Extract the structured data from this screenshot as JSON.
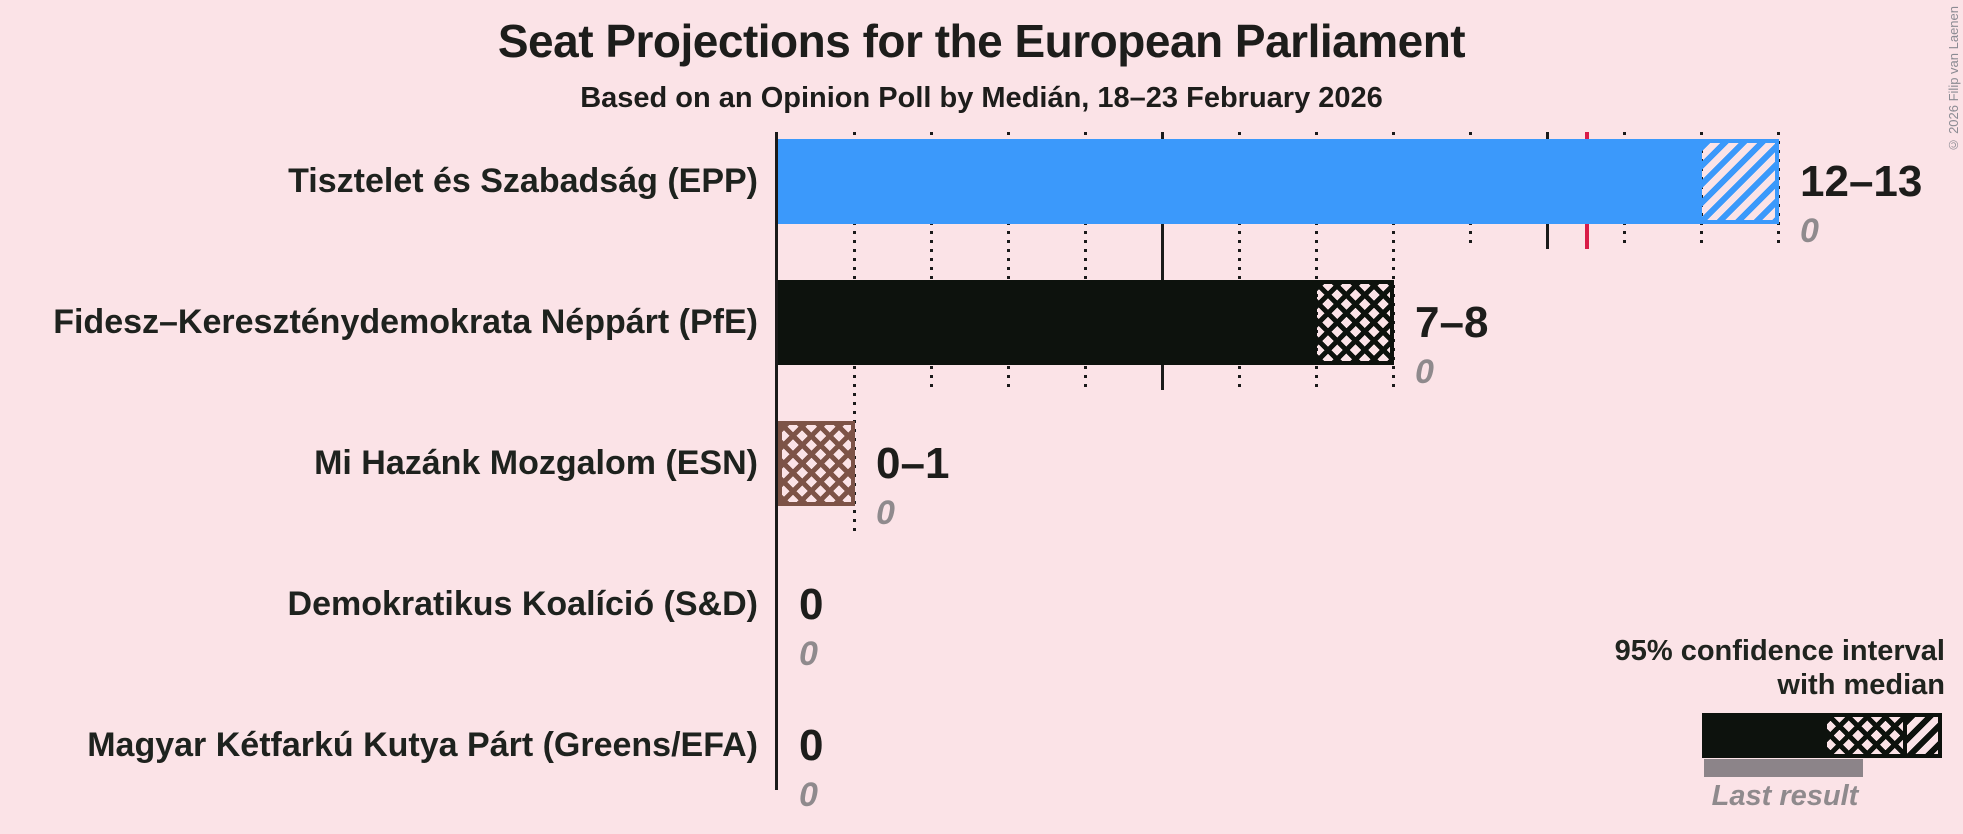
{
  "header": {
    "title": "Seat Projections for the European Parliament",
    "subtitle": "Based on an Opinion Poll by Medián, 18–23 February 2026",
    "copyright": "© 2026 Filip van Laenen"
  },
  "legend": {
    "ci_line1": "95% confidence interval",
    "ci_line2": "with median",
    "last_result": "Last result"
  },
  "colors": {
    "background": "#fbe3e7",
    "grid": "#1a1a1a",
    "majority_line": "#d91c48",
    "value_text": "#1d1d1b",
    "muted_gray": "#8f8a8d",
    "last_result_bar": "#8c8489",
    "legend_sample": "#0d120d"
  },
  "chart_data": {
    "type": "bar",
    "orientation": "horizontal",
    "title": "Seat Projections for the European Parliament",
    "subtitle": "Based on an Opinion Poll by Medián, 18–23 February 2026",
    "x_axis": {
      "min": 0,
      "max": 13,
      "gridline_step": 1,
      "solid_gridline_step": 5,
      "grid_on": true
    },
    "majority_line_value": 10.5,
    "parties": [
      {
        "label": "Tisztelet és Szabadság (EPP)",
        "ci_low": 12,
        "ci_high": 13,
        "value_label": "12–13",
        "last_result": 0,
        "last_result_label": "0",
        "color": "#3b99fb",
        "ci_pattern": "diagonal"
      },
      {
        "label": "Fidesz–Kereszténydemokrata Néppárt (PfE)",
        "ci_low": 7,
        "ci_high": 8,
        "value_label": "7–8",
        "last_result": 0,
        "last_result_label": "0",
        "color": "#0d120d",
        "ci_pattern": "crosshatch"
      },
      {
        "label": "Mi Hazánk Mozgalom (ESN)",
        "ci_low": 0,
        "ci_high": 1,
        "value_label": "0–1",
        "last_result": 0,
        "last_result_label": "0",
        "color": "#7d5347",
        "ci_pattern": "crosshatch"
      },
      {
        "label": "Demokratikus Koalíció (S&D)",
        "ci_low": 0,
        "ci_high": 0,
        "value_label": "0",
        "last_result": 0,
        "last_result_label": "0",
        "color": null,
        "ci_pattern": null
      },
      {
        "label": "Magyar Kétfarkú Kutya Párt (Greens/EFA)",
        "ci_low": 0,
        "ci_high": 0,
        "value_label": "0",
        "last_result": 0,
        "last_result_label": "0",
        "color": null,
        "ci_pattern": null
      }
    ],
    "legend": {
      "ci_label": "95% confidence interval with median",
      "last_result_label": "Last result"
    }
  }
}
